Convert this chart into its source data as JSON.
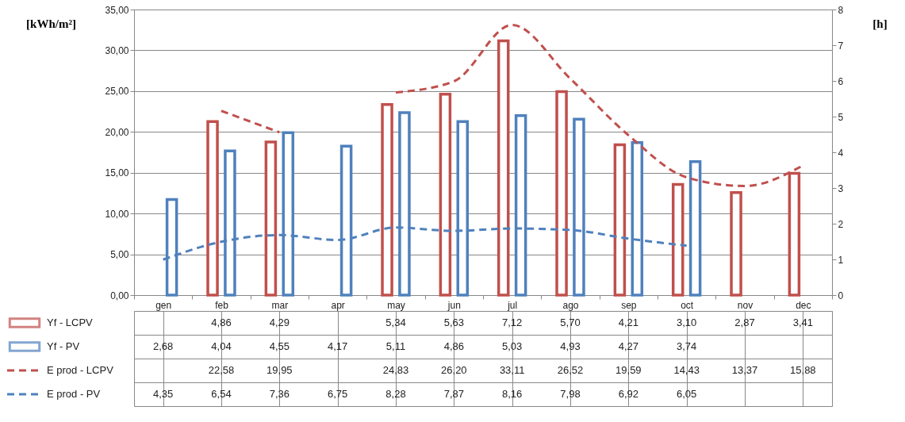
{
  "chart_data": {
    "type": "bar",
    "categories": [
      "gen",
      "feb",
      "mar",
      "apr",
      "may",
      "jun",
      "jul",
      "ago",
      "sep",
      "oct",
      "nov",
      "dec"
    ],
    "ylabel": "[kWh/m²]",
    "y2label": "[h]",
    "ylim": [
      0,
      35
    ],
    "yticks": [
      {
        "value": 0,
        "label": "0,00"
      },
      {
        "value": 5,
        "label": "5,00"
      },
      {
        "value": 10,
        "label": "10,00"
      },
      {
        "value": 15,
        "label": "15,00"
      },
      {
        "value": 20,
        "label": "20,00"
      },
      {
        "value": 25,
        "label": "25,00"
      },
      {
        "value": 30,
        "label": "30,00"
      },
      {
        "value": 35,
        "label": "35,00"
      }
    ],
    "y2lim": [
      0,
      8
    ],
    "y2ticks": [
      0,
      1,
      2,
      3,
      4,
      5,
      6,
      7,
      8
    ],
    "grid": "y",
    "legend": "bottom",
    "series": [
      {
        "name": "Yf - LCPV",
        "axis": "y2",
        "color": "#c0504d",
        "values": [
          null,
          4.86,
          4.29,
          null,
          5.34,
          5.63,
          7.12,
          5.7,
          4.21,
          3.1,
          2.87,
          3.41
        ],
        "value_labels": [
          null,
          "4,86",
          "4,29",
          null,
          "5,34",
          "5,63",
          "7,12",
          "5,70",
          "4,21",
          "3,10",
          "2,87",
          "3,41"
        ]
      },
      {
        "name": "Yf  - PV",
        "axis": "y2",
        "color": "#4f81bd",
        "values": [
          2.68,
          4.04,
          4.55,
          4.17,
          5.11,
          4.86,
          5.03,
          4.93,
          4.27,
          3.74,
          null,
          null
        ],
        "value_labels": [
          "2,68",
          "4,04",
          "4,55",
          "4,17",
          "5,11",
          "4,86",
          "5,03",
          "4,93",
          "4,27",
          "3,74",
          null,
          null
        ]
      },
      {
        "name": "E prod - LCPV",
        "type": "line",
        "line_style": "dashed",
        "color": "#c0504d",
        "values": [
          null,
          22.58,
          19.95,
          null,
          24.83,
          26.2,
          33.11,
          26.52,
          19.59,
          14.43,
          13.37,
          15.88
        ],
        "value_labels": [
          null,
          "22,58",
          "19,95",
          null,
          "24,83",
          "26,20",
          "33,11",
          "26,52",
          "19,59",
          "14,43",
          "13,37",
          "15,88"
        ]
      },
      {
        "name": "E prod - PV",
        "type": "line",
        "line_style": "dashed",
        "color": "#4f81bd",
        "values": [
          4.35,
          6.54,
          7.36,
          6.75,
          8.28,
          7.87,
          8.16,
          7.98,
          6.92,
          6.05,
          null,
          null
        ],
        "value_labels": [
          "4,35",
          "6,54",
          "7,36",
          "6,75",
          "8,28",
          "7,87",
          "8,16",
          "7,98",
          "6,92",
          "6,05",
          null,
          null
        ]
      }
    ]
  }
}
